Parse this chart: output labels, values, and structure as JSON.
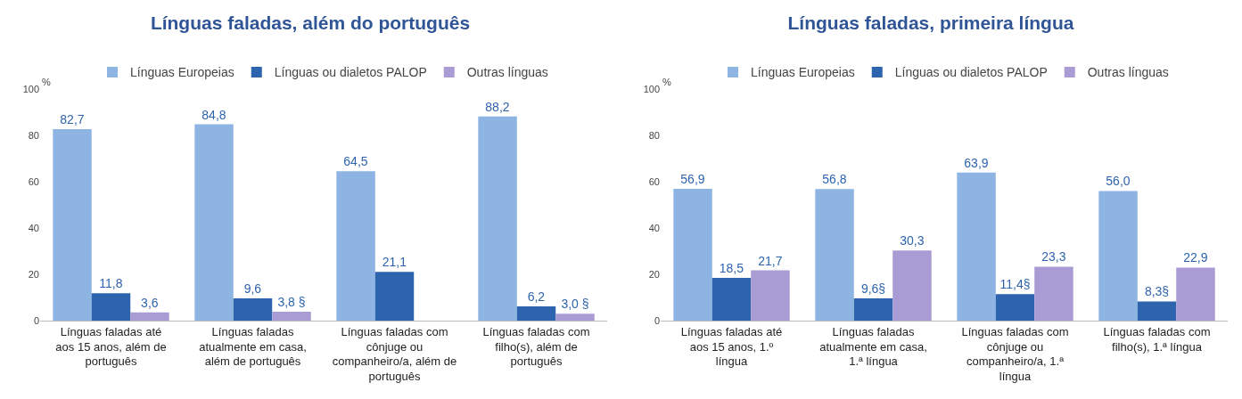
{
  "chart_data": [
    {
      "type": "bar",
      "title": "Línguas faladas, além do português",
      "categories": [
        "Línguas faladas até aos 15 anos, além de português",
        "Línguas faladas atualmente em casa, além de português",
        "Línguas faladas com cônjuge ou companheiro/a, além de português",
        "Línguas faladas com filho(s), além de português"
      ],
      "series": [
        {
          "name": "Línguas Europeias",
          "color": "#8db4e2",
          "values": [
            82.7,
            84.8,
            64.5,
            88.2
          ],
          "value_labels": [
            "82,7",
            "84,8",
            "64,5",
            "88,2"
          ]
        },
        {
          "name": "Línguas ou dialetos PALOP",
          "color": "#2e64ae",
          "values": [
            11.8,
            9.6,
            21.1,
            6.2
          ],
          "value_labels": [
            "11,8",
            "9,6",
            "21,1",
            "6,2"
          ]
        },
        {
          "name": "Outras línguas",
          "color": "#a99bd4",
          "values": [
            3.6,
            3.8,
            null,
            3.0
          ],
          "value_labels": [
            "3,6",
            "3,8 §",
            null,
            "3,0 §"
          ]
        }
      ],
      "ylim": [
        0,
        100
      ],
      "yticks": [
        0,
        20,
        40,
        60,
        80,
        100
      ],
      "grid": false,
      "legend": "top",
      "annotations": [
        "%"
      ]
    },
    {
      "type": "bar",
      "title": "Línguas faladas, primeira língua",
      "categories": [
        "Línguas faladas até aos 15 anos, 1.º língua",
        "Línguas faladas atualmente em casa, 1.ª língua",
        "Línguas faladas com cônjuge ou companheiro/a, 1.ª língua",
        "Línguas faladas com filho(s), 1.ª língua"
      ],
      "series": [
        {
          "name": "Línguas Europeias",
          "color": "#8db4e2",
          "values": [
            56.9,
            56.8,
            63.9,
            56.0
          ],
          "value_labels": [
            "56,9",
            "56,8",
            "63,9",
            "56,0"
          ]
        },
        {
          "name": "Línguas ou dialetos PALOP",
          "color": "#2e64ae",
          "values": [
            18.5,
            9.6,
            11.4,
            8.3
          ],
          "value_labels": [
            "18,5",
            "9,6§",
            "11,4§",
            "8,3§"
          ]
        },
        {
          "name": "Outras línguas",
          "color": "#a99bd4",
          "values": [
            21.7,
            30.3,
            23.3,
            22.9
          ],
          "value_labels": [
            "21,7",
            "30,3",
            "23,3",
            "22,9"
          ]
        }
      ],
      "ylim": [
        0,
        100
      ],
      "yticks": [
        0,
        20,
        40,
        60,
        80,
        100
      ],
      "grid": false,
      "legend": "top",
      "annotations": [
        "%"
      ]
    }
  ]
}
